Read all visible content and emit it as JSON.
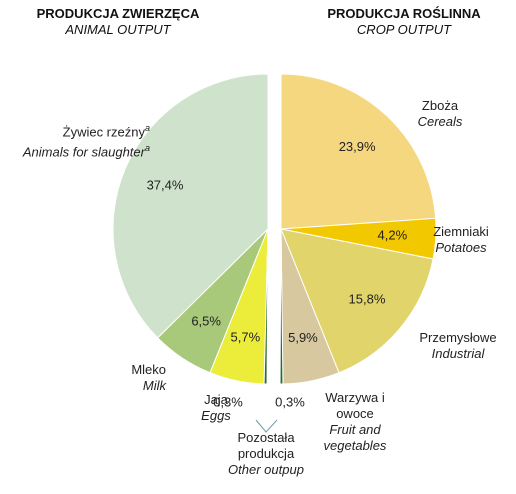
{
  "chart_data": {
    "type": "pie",
    "groups": [
      {
        "title": "PRODUKCJA ZWIERZĘCA",
        "subtitle": "ANIMAL OUTPUT",
        "categories": [
          "Żywiec rzeźny",
          "Mleko",
          "Jaja",
          null
        ],
        "categories_en": [
          "Animals for slaughter",
          "Milk",
          "Eggs",
          null
        ],
        "values": [
          37.4,
          6.5,
          5.7,
          0.3
        ],
        "value_labels": [
          "37,4%",
          "6,5%",
          "5,7%",
          "0,3%"
        ],
        "colors": [
          "#cfe3cc",
          "#a9c97a",
          "#ecec3a",
          "#2f6b2f"
        ]
      },
      {
        "title": "PRODUKCJA ROŚLINNA",
        "subtitle": "CROP OUTPUT",
        "categories": [
          "Zboża",
          "Ziemniaki",
          "Przemysłowe",
          "Warzywa i owoce",
          null
        ],
        "categories_en": [
          "Cereals",
          "Potatoes",
          "Industrial",
          "Fruit and vegetables",
          null
        ],
        "values": [
          23.9,
          4.2,
          15.8,
          5.9,
          0.3
        ],
        "value_labels": [
          "23,9%",
          "4,2%",
          "15,8%",
          "5,9%",
          "0,3%"
        ],
        "colors": [
          "#f5d77f",
          "#f2c800",
          "#e0d46a",
          "#d8c8a0",
          "#2f6b2f"
        ]
      }
    ],
    "annotations": {
      "other_label": "Pozostała produkcja",
      "other_label_en": "Other outpup",
      "footnote_marker": "a"
    }
  }
}
